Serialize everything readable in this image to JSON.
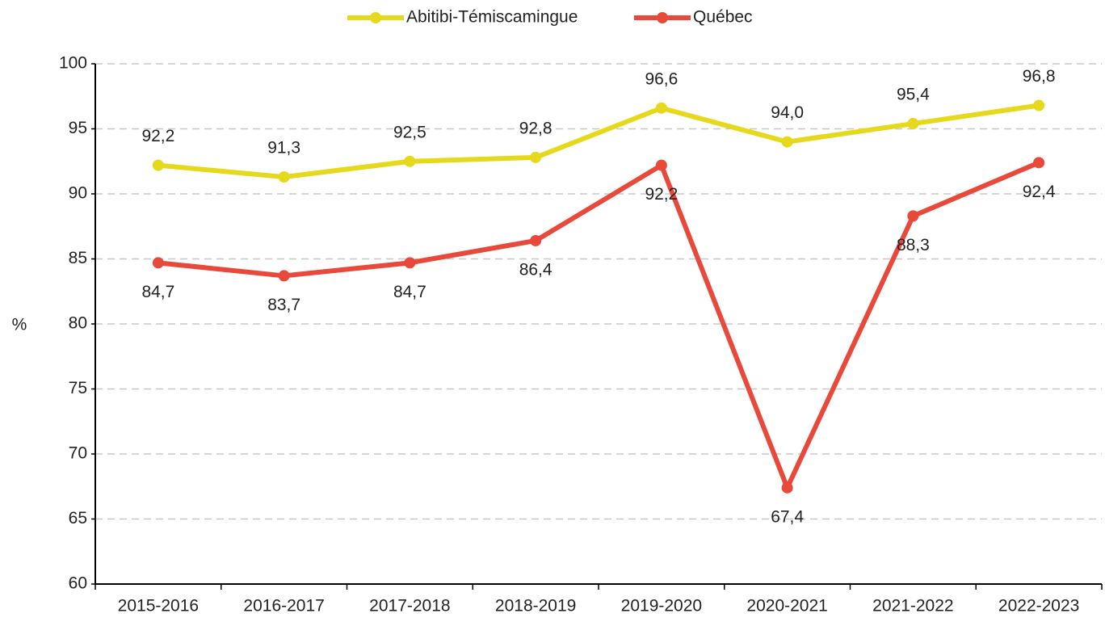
{
  "chart_data": {
    "type": "line",
    "categories": [
      "2015-2016",
      "2016-2017",
      "2017-2018",
      "2018-2019",
      "2019-2020",
      "2020-2021",
      "2021-2022",
      "2022-2023"
    ],
    "series": [
      {
        "name": "Abitibi-Témiscamingue",
        "color": "#e6d81a",
        "values": [
          92.2,
          91.3,
          92.5,
          92.8,
          96.6,
          94.0,
          95.4,
          96.8
        ],
        "value_labels": [
          "92,2",
          "91,3",
          "92,5",
          "92,8",
          "96,6",
          "94,0",
          "95,4",
          "96,8"
        ]
      },
      {
        "name": "Québec",
        "color": "#e8493a",
        "values": [
          84.7,
          83.7,
          84.7,
          86.4,
          92.2,
          67.4,
          88.3,
          92.4
        ],
        "value_labels": [
          "84,7",
          "83,7",
          "84,7",
          "86,4",
          "92,2",
          "67,4",
          "88,3",
          "92,4"
        ]
      }
    ],
    "y_label": "%",
    "ylim": [
      60,
      100
    ],
    "yticks": [
      60,
      65,
      70,
      75,
      80,
      85,
      90,
      95,
      100
    ],
    "grid": true,
    "legend": "top"
  }
}
